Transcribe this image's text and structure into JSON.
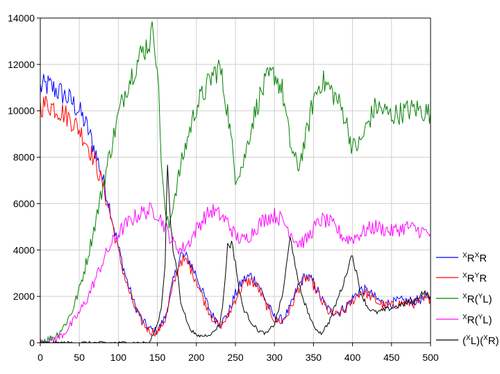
{
  "chart_data": {
    "type": "line",
    "xlim": [
      0,
      500
    ],
    "ylim": [
      0,
      14000
    ],
    "x_ticks": [
      "0",
      "50",
      "100",
      "150",
      "200",
      "250",
      "300",
      "350",
      "400",
      "450",
      "500"
    ],
    "y_ticks": [
      "0",
      "2000",
      "4000",
      "6000",
      "8000",
      "10000",
      "12000",
      "14000"
    ],
    "grid": true,
    "legend_position": "right",
    "series": [
      {
        "name": "XRXR",
        "color": "#0000ff",
        "x": [
          0,
          10,
          20,
          30,
          40,
          50,
          60,
          70,
          80,
          90,
          100,
          110,
          120,
          130,
          140,
          150,
          160,
          170,
          180,
          190,
          200,
          210,
          220,
          230,
          240,
          250,
          260,
          270,
          280,
          290,
          300,
          310,
          320,
          330,
          340,
          350,
          360,
          370,
          380,
          390,
          400,
          410,
          420,
          430,
          440,
          450,
          460,
          470,
          480,
          490,
          500
        ],
        "y": [
          11000,
          11100,
          10900,
          10700,
          10400,
          10000,
          9300,
          8300,
          7100,
          5700,
          4100,
          2800,
          1700,
          1000,
          600,
          500,
          1100,
          2600,
          3800,
          3600,
          2900,
          2000,
          1200,
          800,
          1200,
          2100,
          2700,
          2900,
          2500,
          1700,
          1100,
          1000,
          1500,
          2400,
          2900,
          2600,
          1900,
          1400,
          1300,
          1500,
          1900,
          2300,
          2200,
          1900,
          1700,
          1700,
          1800,
          1800,
          1800,
          1900,
          2000
        ]
      },
      {
        "name": "XRYR",
        "color": "#ff0000",
        "x": [
          0,
          10,
          20,
          30,
          40,
          50,
          60,
          70,
          80,
          90,
          100,
          110,
          120,
          130,
          140,
          150,
          160,
          170,
          180,
          190,
          200,
          210,
          220,
          230,
          240,
          250,
          260,
          270,
          280,
          290,
          300,
          310,
          320,
          330,
          340,
          350,
          360,
          370,
          380,
          390,
          400,
          410,
          420,
          430,
          440,
          450,
          460,
          470,
          480,
          490,
          500
        ],
        "y": [
          10200,
          10300,
          10100,
          9900,
          9600,
          9200,
          8600,
          7800,
          6800,
          5500,
          3900,
          2600,
          1600,
          900,
          500,
          450,
          1000,
          2400,
          3600,
          3400,
          2700,
          1800,
          1100,
          700,
          1100,
          1900,
          2500,
          2700,
          2300,
          1600,
          1000,
          900,
          1400,
          2300,
          2800,
          2500,
          1800,
          1300,
          1200,
          1400,
          1800,
          2200,
          2100,
          1800,
          1600,
          1600,
          1700,
          1700,
          1700,
          1800,
          1900
        ]
      },
      {
        "name": "XR(YL)",
        "color": "#008000",
        "x": [
          0,
          10,
          20,
          30,
          40,
          50,
          60,
          70,
          80,
          90,
          100,
          110,
          120,
          130,
          140,
          145,
          150,
          155,
          160,
          165,
          170,
          180,
          190,
          200,
          210,
          220,
          230,
          240,
          250,
          260,
          270,
          280,
          290,
          300,
          310,
          320,
          330,
          340,
          350,
          360,
          370,
          380,
          390,
          400,
          410,
          420,
          430,
          440,
          450,
          460,
          470,
          480,
          490,
          500
        ],
        "y": [
          100,
          150,
          300,
          700,
          1300,
          2300,
          3600,
          5100,
          6700,
          8300,
          9800,
          11000,
          11800,
          12500,
          13000,
          13500,
          12000,
          8000,
          5500,
          5000,
          6000,
          7600,
          9000,
          10200,
          10800,
          11500,
          11900,
          10000,
          7200,
          7700,
          9300,
          10500,
          11300,
          11600,
          10900,
          8600,
          7500,
          8800,
          10500,
          11300,
          11000,
          10500,
          9800,
          8400,
          8600,
          9500,
          10200,
          10000,
          9800,
          9900,
          10000,
          10100,
          10000,
          9900
        ]
      },
      {
        "name": "XR(YL)",
        "color": "#ff00ff",
        "x": [
          0,
          10,
          20,
          30,
          40,
          50,
          60,
          70,
          80,
          90,
          100,
          110,
          120,
          130,
          140,
          150,
          160,
          170,
          180,
          190,
          200,
          210,
          220,
          230,
          240,
          250,
          260,
          270,
          280,
          290,
          300,
          310,
          320,
          330,
          340,
          350,
          360,
          370,
          380,
          390,
          400,
          410,
          420,
          430,
          440,
          450,
          460,
          470,
          480,
          490,
          500
        ],
        "y": [
          50,
          80,
          150,
          400,
          800,
          1300,
          1900,
          2700,
          3500,
          4200,
          4700,
          5100,
          5400,
          5600,
          5700,
          5600,
          5000,
          4300,
          4000,
          4300,
          4900,
          5400,
          5700,
          5500,
          5200,
          4600,
          4400,
          4700,
          5100,
          5400,
          5500,
          5300,
          4800,
          4300,
          4400,
          4900,
          5300,
          5200,
          4900,
          4500,
          4500,
          4700,
          4900,
          5000,
          4900,
          4800,
          4900,
          5000,
          4900,
          4800,
          4700
        ]
      },
      {
        "name": "(XL)(XR)",
        "color": "#000000",
        "x": [
          0,
          20,
          40,
          60,
          80,
          100,
          120,
          140,
          145,
          150,
          155,
          160,
          163,
          166,
          170,
          175,
          180,
          190,
          200,
          210,
          220,
          230,
          235,
          240,
          245,
          250,
          255,
          260,
          270,
          280,
          290,
          300,
          310,
          315,
          320,
          325,
          330,
          340,
          350,
          360,
          370,
          380,
          390,
          395,
          400,
          405,
          410,
          420,
          430,
          440,
          450,
          460,
          470,
          480,
          490,
          500
        ],
        "y": [
          0,
          0,
          0,
          0,
          0,
          0,
          0,
          0,
          400,
          800,
          1500,
          3500,
          7800,
          5500,
          4000,
          3200,
          1800,
          700,
          300,
          300,
          400,
          800,
          2000,
          4200,
          4300,
          3500,
          2200,
          1500,
          900,
          500,
          400,
          800,
          2000,
          3200,
          4500,
          3800,
          2600,
          1600,
          700,
          400,
          900,
          1800,
          2700,
          3400,
          3800,
          3000,
          2200,
          1500,
          1300,
          1400,
          1500,
          1600,
          1700,
          1800,
          2200,
          2000
        ]
      }
    ]
  }
}
